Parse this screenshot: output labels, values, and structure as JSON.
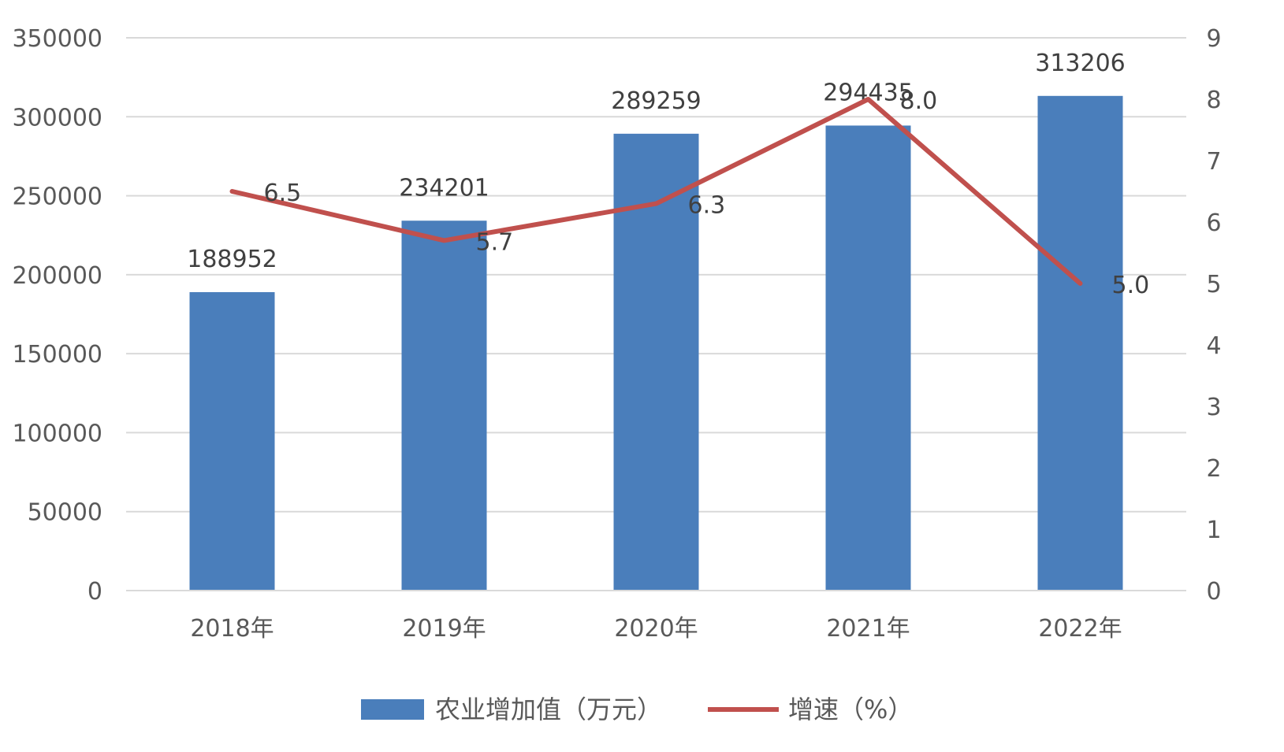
{
  "chart_data": {
    "type": "bar",
    "categories": [
      "2018年",
      "2019年",
      "2020年",
      "2021年",
      "2022年"
    ],
    "series": [
      {
        "name": "农业增加值（万元）",
        "type": "bar",
        "axis": "left",
        "values": [
          188952,
          234201,
          289259,
          294435,
          313206
        ],
        "labels": [
          "188952",
          "234201",
          "289259",
          "294435",
          "313206"
        ],
        "color": "#4a7ebb"
      },
      {
        "name": "增速（%）",
        "type": "line",
        "axis": "right",
        "values": [
          6.5,
          5.7,
          6.3,
          8.0,
          5.0
        ],
        "labels": [
          "6.5",
          "5.7",
          "6.3",
          "8.0",
          "5.0"
        ],
        "color": "#c0504d"
      }
    ],
    "y_left": {
      "lim": [
        0,
        350000
      ],
      "ticks": [
        "0",
        "50000",
        "100000",
        "150000",
        "200000",
        "250000",
        "300000",
        "350000"
      ]
    },
    "y_right": {
      "lim": [
        0,
        9
      ],
      "ticks": [
        "0",
        "1",
        "2",
        "3",
        "4",
        "5",
        "6",
        "7",
        "8",
        "9"
      ]
    },
    "title": "",
    "xlabel": "",
    "ylabel": "",
    "grid": true,
    "legend_position": "bottom"
  }
}
